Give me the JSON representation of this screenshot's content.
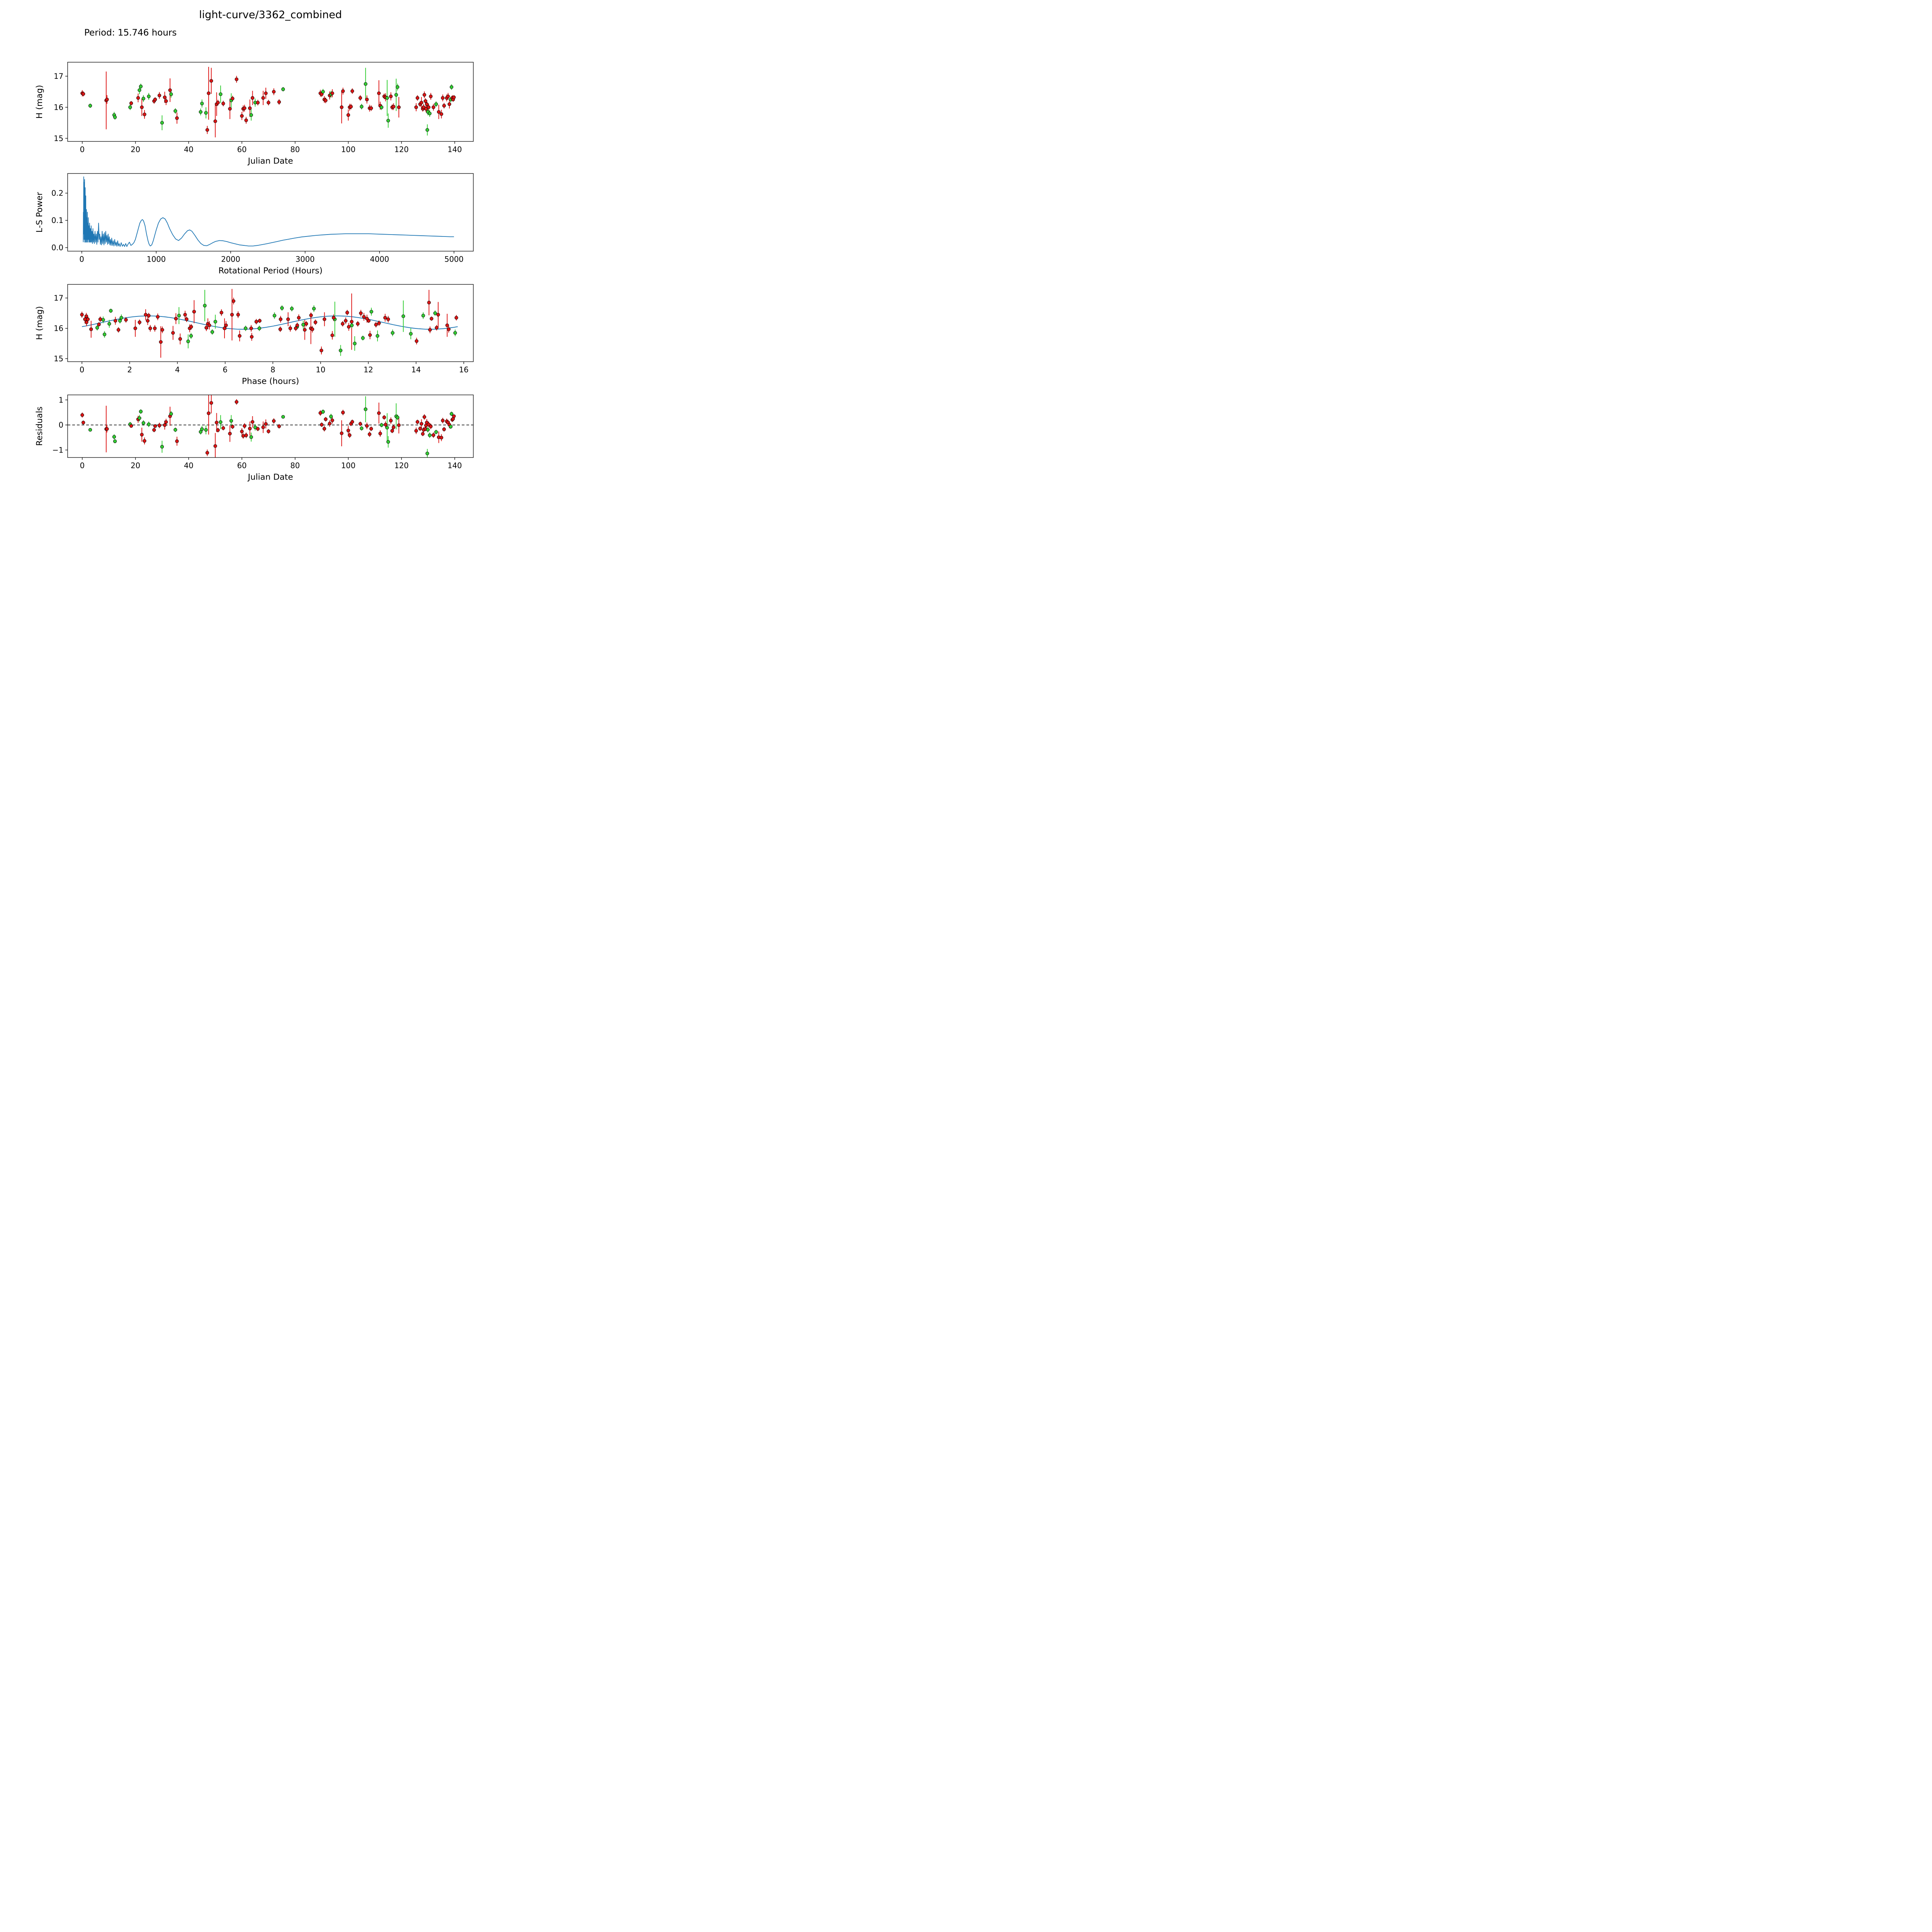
{
  "title": "light-curve/3362_combined",
  "subtitle": "Period: 15.746 hours",
  "period_hours": 15.746,
  "colors": {
    "red": "#dd1414",
    "green": "#32cd32",
    "fit_line": "#1f77b4",
    "periodogram_line": "#1f77b4",
    "marker_edge": "#000000",
    "zero_line": "#000000"
  },
  "observations": [
    [
      0.0,
      16.45,
      0.1,
      "r"
    ],
    [
      0.4,
      16.43,
      0.08,
      "r"
    ],
    [
      3.0,
      16.05,
      0.07,
      "g"
    ],
    [
      9.0,
      16.22,
      0.93,
      "r"
    ],
    [
      9.3,
      16.25,
      0.14,
      "r"
    ],
    [
      12.0,
      15.75,
      0.1,
      "g"
    ],
    [
      12.3,
      15.68,
      0.08,
      "g"
    ],
    [
      18.0,
      16.0,
      0.09,
      "g"
    ],
    [
      18.4,
      16.13,
      0.07,
      "r"
    ],
    [
      21.0,
      16.3,
      0.14,
      "r"
    ],
    [
      21.5,
      16.55,
      0.13,
      "g"
    ],
    [
      22.0,
      16.67,
      0.09,
      "g"
    ],
    [
      22.4,
      16.0,
      0.28,
      "r"
    ],
    [
      23.0,
      16.28,
      0.11,
      "g"
    ],
    [
      23.4,
      15.77,
      0.14,
      "r"
    ],
    [
      25.0,
      16.35,
      0.11,
      "g"
    ],
    [
      27.0,
      16.2,
      0.09,
      "r"
    ],
    [
      27.4,
      16.25,
      0.07,
      "r"
    ],
    [
      29.0,
      16.38,
      0.11,
      "r"
    ],
    [
      30.0,
      15.5,
      0.24,
      "g"
    ],
    [
      31.0,
      16.32,
      0.18,
      "r"
    ],
    [
      31.5,
      16.2,
      0.13,
      "r"
    ],
    [
      33.0,
      16.55,
      0.38,
      "r"
    ],
    [
      33.4,
      16.42,
      0.11,
      "g"
    ],
    [
      35.0,
      15.88,
      0.09,
      "g"
    ],
    [
      35.6,
      15.65,
      0.18,
      "r"
    ],
    [
      44.5,
      15.85,
      0.11,
      "g"
    ],
    [
      45.0,
      16.12,
      0.13,
      "g"
    ],
    [
      46.5,
      15.82,
      0.18,
      "g"
    ],
    [
      47.0,
      15.27,
      0.13,
      "r"
    ],
    [
      47.5,
      16.45,
      0.85,
      "r"
    ],
    [
      48.5,
      16.85,
      0.42,
      "r"
    ],
    [
      50.0,
      15.55,
      0.52,
      "r"
    ],
    [
      50.5,
      16.1,
      0.38,
      "r"
    ],
    [
      51.0,
      16.15,
      0.09,
      "r"
    ],
    [
      52.0,
      16.42,
      0.28,
      "g"
    ],
    [
      53.0,
      16.12,
      0.09,
      "r"
    ],
    [
      55.5,
      15.95,
      0.33,
      "r"
    ],
    [
      56.0,
      16.22,
      0.23,
      "g"
    ],
    [
      56.5,
      16.28,
      0.09,
      "r"
    ],
    [
      58.0,
      16.9,
      0.11,
      "r"
    ],
    [
      60.0,
      15.72,
      0.13,
      "r"
    ],
    [
      60.5,
      15.95,
      0.11,
      "r"
    ],
    [
      61.0,
      15.97,
      0.11,
      "r"
    ],
    [
      61.6,
      15.58,
      0.11,
      "r"
    ],
    [
      63.0,
      15.97,
      0.28,
      "r"
    ],
    [
      63.5,
      15.75,
      0.18,
      "g"
    ],
    [
      64.0,
      16.3,
      0.23,
      "r"
    ],
    [
      65.0,
      16.15,
      0.13,
      "g"
    ],
    [
      66.0,
      16.15,
      0.09,
      "r"
    ],
    [
      68.0,
      16.3,
      0.23,
      "r"
    ],
    [
      69.0,
      16.45,
      0.18,
      "r"
    ],
    [
      70.0,
      16.15,
      0.09,
      "r"
    ],
    [
      72.0,
      16.5,
      0.11,
      "r"
    ],
    [
      74.0,
      16.17,
      0.09,
      "r"
    ],
    [
      75.5,
      16.58,
      0.07,
      "g"
    ],
    [
      89.5,
      16.45,
      0.11,
      "r"
    ],
    [
      90.0,
      16.42,
      0.09,
      "r"
    ],
    [
      90.5,
      16.5,
      0.09,
      "g"
    ],
    [
      91.0,
      16.25,
      0.11,
      "r"
    ],
    [
      91.5,
      16.22,
      0.09,
      "r"
    ],
    [
      93.0,
      16.38,
      0.13,
      "r"
    ],
    [
      93.5,
      16.42,
      0.11,
      "g"
    ],
    [
      94.0,
      16.45,
      0.13,
      "r"
    ],
    [
      97.5,
      16.0,
      0.52,
      "r"
    ],
    [
      98.0,
      16.52,
      0.11,
      "r"
    ],
    [
      100.0,
      15.75,
      0.18,
      "r"
    ],
    [
      100.5,
      16.0,
      0.11,
      "r"
    ],
    [
      101.0,
      16.02,
      0.09,
      "r"
    ],
    [
      101.5,
      16.52,
      0.09,
      "r"
    ],
    [
      104.5,
      16.3,
      0.09,
      "r"
    ],
    [
      105.0,
      16.02,
      0.09,
      "g"
    ],
    [
      106.5,
      16.75,
      0.52,
      "g"
    ],
    [
      107.0,
      16.25,
      0.13,
      "r"
    ],
    [
      108.0,
      15.97,
      0.11,
      "r"
    ],
    [
      108.6,
      15.97,
      0.09,
      "r"
    ],
    [
      111.5,
      16.45,
      0.42,
      "r"
    ],
    [
      112.0,
      16.05,
      0.13,
      "r"
    ],
    [
      112.5,
      16.0,
      0.09,
      "g"
    ],
    [
      113.5,
      16.35,
      0.09,
      "r"
    ],
    [
      114.0,
      16.32,
      0.13,
      "r"
    ],
    [
      114.6,
      16.3,
      0.58,
      "g"
    ],
    [
      115.0,
      15.57,
      0.23,
      "g"
    ],
    [
      116.0,
      16.35,
      0.13,
      "r"
    ],
    [
      116.5,
      16.0,
      0.09,
      "r"
    ],
    [
      117.0,
      16.02,
      0.11,
      "r"
    ],
    [
      118.0,
      16.4,
      0.52,
      "g"
    ],
    [
      118.5,
      16.65,
      0.11,
      "g"
    ],
    [
      119.0,
      16.0,
      0.33,
      "r"
    ],
    [
      125.5,
      16.0,
      0.13,
      "r"
    ],
    [
      126.0,
      16.3,
      0.09,
      "r"
    ],
    [
      127.0,
      16.1,
      0.09,
      "r"
    ],
    [
      127.5,
      16.15,
      0.18,
      "r"
    ],
    [
      128.0,
      15.95,
      0.09,
      "r"
    ],
    [
      128.3,
      16.0,
      0.11,
      "r"
    ],
    [
      128.6,
      16.4,
      0.11,
      "r"
    ],
    [
      129.0,
      16.2,
      0.09,
      "r"
    ],
    [
      129.2,
      15.95,
      0.11,
      "r"
    ],
    [
      129.5,
      16.1,
      0.14,
      "r"
    ],
    [
      129.7,
      15.27,
      0.18,
      "g"
    ],
    [
      129.9,
      15.85,
      0.11,
      "g"
    ],
    [
      130.2,
      16.0,
      0.11,
      "r"
    ],
    [
      130.6,
      15.8,
      0.11,
      "g"
    ],
    [
      131.0,
      16.35,
      0.11,
      "r"
    ],
    [
      132.0,
      16.0,
      0.11,
      "r"
    ],
    [
      133.0,
      16.1,
      0.09,
      "g"
    ],
    [
      134.0,
      15.85,
      0.23,
      "r"
    ],
    [
      135.0,
      15.78,
      0.14,
      "r"
    ],
    [
      135.5,
      16.3,
      0.11,
      "r"
    ],
    [
      136.0,
      16.05,
      0.09,
      "r"
    ],
    [
      137.0,
      16.3,
      0.11,
      "r"
    ],
    [
      137.5,
      16.35,
      0.11,
      "r"
    ],
    [
      138.0,
      16.1,
      0.14,
      "r"
    ],
    [
      138.5,
      16.25,
      0.09,
      "g"
    ],
    [
      138.8,
      16.65,
      0.09,
      "g"
    ],
    [
      139.1,
      16.3,
      0.09,
      "r"
    ],
    [
      139.4,
      16.25,
      0.07,
      "r"
    ],
    [
      139.7,
      16.32,
      0.07,
      "r"
    ]
  ],
  "chart_data": [
    {
      "id": "lightcurve_jd",
      "type": "scatter",
      "title": "",
      "xlabel": "Julian Date",
      "ylabel": "H (mag)",
      "xlim": [
        -5.5,
        147
      ],
      "ylim": [
        14.9,
        17.45
      ],
      "xticks": [
        0,
        20,
        40,
        60,
        80,
        100,
        120,
        140
      ],
      "yticks": [
        15,
        16,
        17
      ],
      "source": "observations",
      "grid": false,
      "legend": "none"
    },
    {
      "id": "periodogram",
      "type": "line",
      "title": "",
      "xlabel": "Rotational Period (Hours)",
      "ylabel": "L-S Power",
      "xlim": [
        -190,
        5260
      ],
      "ylim": [
        -0.013,
        0.272
      ],
      "xticks": [
        0,
        1000,
        2000,
        3000,
        4000,
        5000
      ],
      "yticks": [
        0.0,
        0.1,
        0.2
      ],
      "ytick_decimals": 1,
      "grid": false,
      "legend": "none",
      "points": [
        [
          20,
          0.02
        ],
        [
          22,
          0.13
        ],
        [
          24,
          0.05
        ],
        [
          26,
          0.26
        ],
        [
          28,
          0.08
        ],
        [
          30,
          0.24
        ],
        [
          32,
          0.03
        ],
        [
          34,
          0.2
        ],
        [
          36,
          0.06
        ],
        [
          38,
          0.25
        ],
        [
          40,
          0.02
        ],
        [
          42,
          0.16
        ],
        [
          44,
          0.04
        ],
        [
          46,
          0.22
        ],
        [
          48,
          0.03
        ],
        [
          50,
          0.12
        ],
        [
          52,
          0.02
        ],
        [
          54,
          0.19
        ],
        [
          56,
          0.04
        ],
        [
          58,
          0.1
        ],
        [
          60,
          0.02
        ],
        [
          63,
          0.14
        ],
        [
          66,
          0.03
        ],
        [
          69,
          0.11
        ],
        [
          72,
          0.02
        ],
        [
          75,
          0.13
        ],
        [
          78,
          0.03
        ],
        [
          81,
          0.09
        ],
        [
          84,
          0.02
        ],
        [
          88,
          0.11
        ],
        [
          92,
          0.03
        ],
        [
          96,
          0.08
        ],
        [
          100,
          0.02
        ],
        [
          105,
          0.09
        ],
        [
          110,
          0.02
        ],
        [
          115,
          0.07
        ],
        [
          120,
          0.02
        ],
        [
          126,
          0.08
        ],
        [
          132,
          0.02
        ],
        [
          138,
          0.06
        ],
        [
          144,
          0.015
        ],
        [
          150,
          0.07
        ],
        [
          156,
          0.02
        ],
        [
          163,
          0.05
        ],
        [
          170,
          0.015
        ],
        [
          178,
          0.06
        ],
        [
          186,
          0.02
        ],
        [
          194,
          0.05
        ],
        [
          202,
          0.012
        ],
        [
          210,
          0.06
        ],
        [
          218,
          0.02
        ],
        [
          226,
          0.09
        ],
        [
          234,
          0.03
        ],
        [
          242,
          0.05
        ],
        [
          250,
          0.012
        ],
        [
          258,
          0.04
        ],
        [
          266,
          0.01
        ],
        [
          274,
          0.06
        ],
        [
          282,
          0.015
        ],
        [
          290,
          0.05
        ],
        [
          298,
          0.01
        ],
        [
          306,
          0.055
        ],
        [
          314,
          0.015
        ],
        [
          322,
          0.06
        ],
        [
          330,
          0.02
        ],
        [
          338,
          0.045
        ],
        [
          346,
          0.012
        ],
        [
          354,
          0.05
        ],
        [
          362,
          0.015
        ],
        [
          370,
          0.04
        ],
        [
          378,
          0.01
        ],
        [
          386,
          0.03
        ],
        [
          394,
          0.008
        ],
        [
          402,
          0.035
        ],
        [
          412,
          0.008
        ],
        [
          422,
          0.025
        ],
        [
          432,
          0.006
        ],
        [
          442,
          0.03
        ],
        [
          452,
          0.008
        ],
        [
          462,
          0.02
        ],
        [
          472,
          0.005
        ],
        [
          482,
          0.025
        ],
        [
          492,
          0.006
        ],
        [
          502,
          0.015
        ],
        [
          515,
          0.004
        ],
        [
          530,
          0.018
        ],
        [
          545,
          0.005
        ],
        [
          560,
          0.012
        ],
        [
          575,
          0.004
        ],
        [
          590,
          0.015
        ],
        [
          605,
          0.004
        ],
        [
          620,
          0.012
        ],
        [
          640,
          0.02
        ],
        [
          660,
          0.008
        ],
        [
          680,
          0.012
        ],
        [
          700,
          0.018
        ],
        [
          720,
          0.03
        ],
        [
          740,
          0.05
        ],
        [
          760,
          0.07
        ],
        [
          780,
          0.09
        ],
        [
          800,
          0.1
        ],
        [
          815,
          0.103
        ],
        [
          830,
          0.098
        ],
        [
          850,
          0.08
        ],
        [
          870,
          0.05
        ],
        [
          890,
          0.025
        ],
        [
          905,
          0.012
        ],
        [
          920,
          0.006
        ],
        [
          940,
          0.01
        ],
        [
          960,
          0.025
        ],
        [
          980,
          0.045
        ],
        [
          1000,
          0.065
        ],
        [
          1030,
          0.09
        ],
        [
          1060,
          0.105
        ],
        [
          1090,
          0.11
        ],
        [
          1120,
          0.105
        ],
        [
          1150,
          0.09
        ],
        [
          1180,
          0.07
        ],
        [
          1220,
          0.048
        ],
        [
          1260,
          0.032
        ],
        [
          1300,
          0.026
        ],
        [
          1340,
          0.035
        ],
        [
          1380,
          0.05
        ],
        [
          1420,
          0.062
        ],
        [
          1450,
          0.065
        ],
        [
          1480,
          0.06
        ],
        [
          1520,
          0.045
        ],
        [
          1560,
          0.028
        ],
        [
          1600,
          0.015
        ],
        [
          1640,
          0.008
        ],
        [
          1680,
          0.007
        ],
        [
          1720,
          0.012
        ],
        [
          1760,
          0.018
        ],
        [
          1800,
          0.023
        ],
        [
          1850,
          0.026
        ],
        [
          1900,
          0.025
        ],
        [
          1950,
          0.022
        ],
        [
          2000,
          0.018
        ],
        [
          2060,
          0.014
        ],
        [
          2120,
          0.01
        ],
        [
          2180,
          0.008
        ],
        [
          2240,
          0.006
        ],
        [
          2300,
          0.006
        ],
        [
          2360,
          0.008
        ],
        [
          2420,
          0.011
        ],
        [
          2480,
          0.014
        ],
        [
          2550,
          0.018
        ],
        [
          2620,
          0.022
        ],
        [
          2700,
          0.027
        ],
        [
          2780,
          0.031
        ],
        [
          2860,
          0.035
        ],
        [
          2950,
          0.039
        ],
        [
          3050,
          0.042
        ],
        [
          3150,
          0.045
        ],
        [
          3250,
          0.047
        ],
        [
          3350,
          0.049
        ],
        [
          3450,
          0.05
        ],
        [
          3550,
          0.051
        ],
        [
          3650,
          0.051
        ],
        [
          3750,
          0.051
        ],
        [
          3850,
          0.051
        ],
        [
          3950,
          0.05
        ],
        [
          4050,
          0.049
        ],
        [
          4150,
          0.048
        ],
        [
          4250,
          0.047
        ],
        [
          4350,
          0.046
        ],
        [
          4450,
          0.045
        ],
        [
          4550,
          0.044
        ],
        [
          4650,
          0.043
        ],
        [
          4750,
          0.042
        ],
        [
          4850,
          0.041
        ],
        [
          4950,
          0.04
        ],
        [
          5000,
          0.04
        ]
      ]
    },
    {
      "id": "phase_folded",
      "type": "scatter+fit",
      "title": "",
      "xlabel": "Phase (hours)",
      "ylabel": "H (mag)",
      "xlim": [
        -0.6,
        16.4
      ],
      "ylim": [
        14.9,
        17.45
      ],
      "xticks": [
        0,
        2,
        4,
        6,
        8,
        10,
        12,
        14,
        16
      ],
      "yticks": [
        15,
        16,
        17
      ],
      "source": "observations",
      "grid": false,
      "legend": "none",
      "fit": {
        "mean": 16.19,
        "amplitude": 0.22,
        "phase_zero": 0.83,
        "cycles": 2,
        "period": 15.746
      }
    },
    {
      "id": "residuals",
      "type": "scatter",
      "title": "",
      "xlabel": "Julian Date",
      "ylabel": "Residuals",
      "xlim": [
        -5.5,
        147
      ],
      "ylim": [
        -1.3,
        1.2
      ],
      "xticks": [
        0,
        20,
        40,
        60,
        80,
        100,
        120,
        140
      ],
      "yticks": [
        -1,
        0,
        1
      ],
      "source": "observations",
      "zero_line": true,
      "grid": false,
      "legend": "none"
    }
  ]
}
